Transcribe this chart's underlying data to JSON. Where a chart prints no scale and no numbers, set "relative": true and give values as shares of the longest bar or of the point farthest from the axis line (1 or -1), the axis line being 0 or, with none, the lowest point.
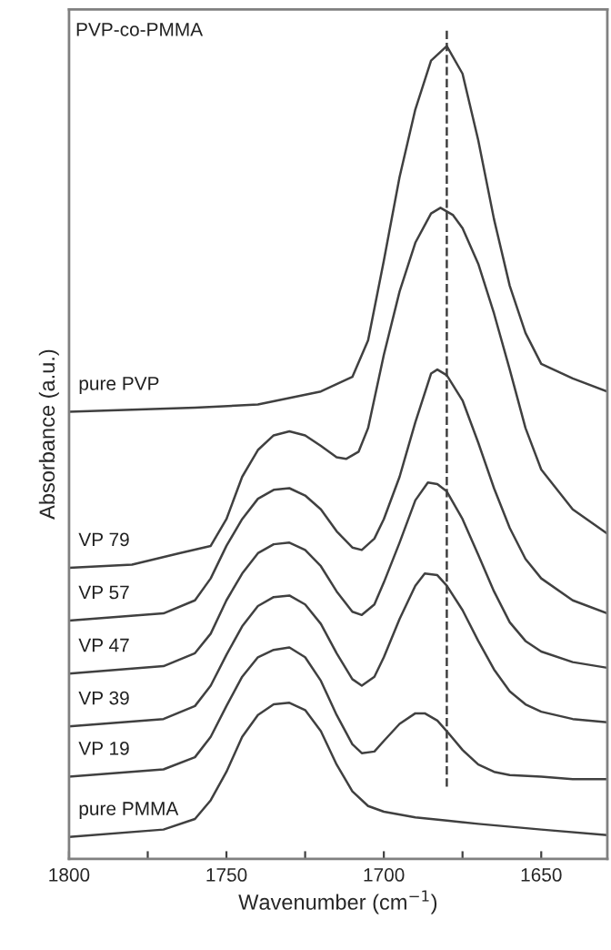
{
  "chart_data": {
    "type": "line",
    "relative": true,
    "xlabel": "Wavenumber (cm$^{−1}$)",
    "ylabel": "Absorbance (a.u.)",
    "annotations": [
      "PVP-co-PMMA"
    ],
    "xlim": [
      1800,
      1629
    ],
    "xticks": [
      1800,
      {
        "value": 1775,
        "label": null
      },
      1750,
      {
        "value": 1725,
        "label": null
      },
      1700,
      {
        "value": 1675,
        "label": null
      },
      1650
    ],
    "tick_labels": "x",
    "grid": false,
    "legend": false,
    "line_style": "solid",
    "marker": "none",
    "ref_lines": [
      {
        "axis": "x",
        "value": 1680,
        "color": "#404040",
        "line_style": "dashed"
      }
    ],
    "series": [
      {
        "name": "pure PVP",
        "color": "#404040",
        "x": [
          1800,
          1760,
          1740,
          1720,
          1710,
          1705,
          1700,
          1695,
          1690,
          1685,
          1680,
          1675,
          1670,
          1665,
          1660,
          1655,
          1650,
          1640,
          1629
        ],
        "values": [
          0.55,
          0.555,
          0.559,
          0.575,
          0.593,
          0.638,
          0.736,
          0.839,
          0.922,
          0.982,
          1.0,
          0.966,
          0.884,
          0.787,
          0.705,
          0.647,
          0.609,
          0.591,
          0.575
        ]
      },
      {
        "name": "VP 79",
        "color": "#404040",
        "x": [
          1800,
          1780,
          1765,
          1755,
          1750,
          1745,
          1740,
          1735,
          1730,
          1725,
          1720,
          1715,
          1712,
          1708,
          1705,
          1700,
          1695,
          1690,
          1685,
          1682,
          1678,
          1675,
          1670,
          1665,
          1660,
          1655,
          1650,
          1640,
          1629
        ],
        "values": [
          0.358,
          0.362,
          0.376,
          0.385,
          0.418,
          0.47,
          0.503,
          0.521,
          0.526,
          0.521,
          0.508,
          0.494,
          0.492,
          0.501,
          0.53,
          0.62,
          0.698,
          0.758,
          0.794,
          0.801,
          0.792,
          0.776,
          0.732,
          0.671,
          0.602,
          0.53,
          0.479,
          0.43,
          0.4
        ]
      },
      {
        "name": "VP 57",
        "color": "#404040",
        "x": [
          1800,
          1770,
          1760,
          1755,
          1750,
          1745,
          1740,
          1735,
          1730,
          1725,
          1720,
          1715,
          1710,
          1707,
          1703,
          1700,
          1695,
          1690,
          1685,
          1683,
          1680,
          1675,
          1670,
          1665,
          1660,
          1655,
          1650,
          1640,
          1629
        ],
        "values": [
          0.293,
          0.302,
          0.318,
          0.345,
          0.385,
          0.418,
          0.443,
          0.454,
          0.456,
          0.447,
          0.43,
          0.403,
          0.383,
          0.38,
          0.394,
          0.418,
          0.47,
          0.537,
          0.597,
          0.602,
          0.595,
          0.564,
          0.512,
          0.456,
          0.407,
          0.369,
          0.345,
          0.318,
          0.302
        ]
      },
      {
        "name": "VP 47",
        "color": "#404040",
        "x": [
          1800,
          1770,
          1760,
          1755,
          1750,
          1745,
          1740,
          1735,
          1730,
          1725,
          1720,
          1715,
          1710,
          1707,
          1703,
          1700,
          1695,
          1690,
          1686,
          1683,
          1680,
          1675,
          1670,
          1665,
          1660,
          1655,
          1650,
          1640,
          1629
        ],
        "values": [
          0.228,
          0.237,
          0.253,
          0.277,
          0.318,
          0.351,
          0.376,
          0.387,
          0.389,
          0.38,
          0.36,
          0.329,
          0.304,
          0.3,
          0.313,
          0.34,
          0.389,
          0.441,
          0.463,
          0.461,
          0.452,
          0.418,
          0.374,
          0.329,
          0.291,
          0.268,
          0.255,
          0.242,
          0.235
        ]
      },
      {
        "name": "VP 39",
        "color": "#404040",
        "x": [
          1800,
          1770,
          1760,
          1755,
          1750,
          1745,
          1740,
          1735,
          1730,
          1725,
          1720,
          1715,
          1710,
          1707,
          1703,
          1700,
          1695,
          1690,
          1687,
          1683,
          1680,
          1675,
          1670,
          1665,
          1660,
          1655,
          1650,
          1640,
          1629
        ],
        "values": [
          0.163,
          0.172,
          0.188,
          0.213,
          0.251,
          0.286,
          0.311,
          0.322,
          0.324,
          0.313,
          0.289,
          0.253,
          0.221,
          0.213,
          0.224,
          0.248,
          0.295,
          0.336,
          0.351,
          0.349,
          0.336,
          0.306,
          0.268,
          0.233,
          0.206,
          0.19,
          0.181,
          0.172,
          0.168
        ]
      },
      {
        "name": "VP 19",
        "color": "#404040",
        "x": [
          1800,
          1770,
          1760,
          1755,
          1750,
          1745,
          1740,
          1735,
          1730,
          1725,
          1720,
          1715,
          1710,
          1707,
          1703,
          1700,
          1695,
          1690,
          1687,
          1683,
          1680,
          1675,
          1670,
          1665,
          1660,
          1650,
          1640,
          1629
        ],
        "values": [
          0.101,
          0.11,
          0.125,
          0.15,
          0.188,
          0.224,
          0.248,
          0.257,
          0.26,
          0.248,
          0.219,
          0.177,
          0.141,
          0.13,
          0.132,
          0.145,
          0.166,
          0.179,
          0.179,
          0.17,
          0.157,
          0.134,
          0.116,
          0.107,
          0.103,
          0.101,
          0.098,
          0.098
        ]
      },
      {
        "name": "pure PMMA",
        "color": "#404040",
        "x": [
          1800,
          1770,
          1760,
          1755,
          1750,
          1745,
          1740,
          1735,
          1730,
          1725,
          1720,
          1715,
          1710,
          1705,
          1700,
          1690,
          1680,
          1670,
          1650,
          1629
        ],
        "values": [
          0.027,
          0.036,
          0.049,
          0.072,
          0.107,
          0.15,
          0.177,
          0.19,
          0.192,
          0.183,
          0.157,
          0.116,
          0.083,
          0.065,
          0.058,
          0.051,
          0.047,
          0.043,
          0.036,
          0.029
        ]
      }
    ]
  }
}
